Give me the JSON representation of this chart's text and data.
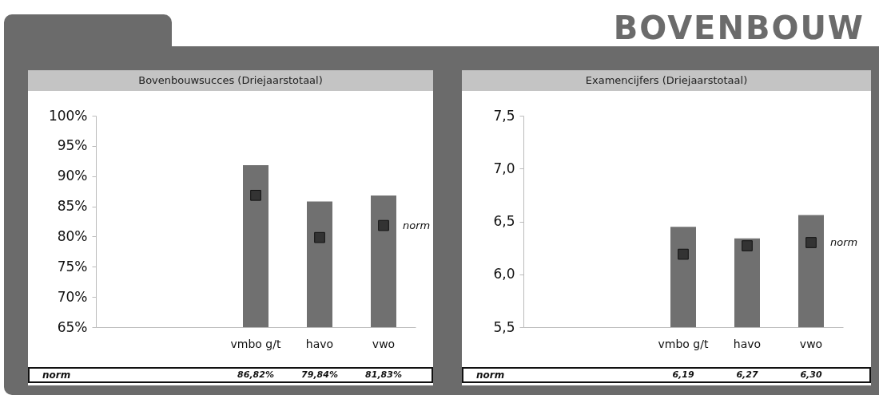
{
  "chart_data": [
    {
      "type": "bar",
      "title": "Bovenbouwsucces (Driejaarstotaal)",
      "annotations": [
        "BOVENBOUW"
      ],
      "categories": [
        null,
        null,
        "vmbo g/t",
        "havo",
        "vwo"
      ],
      "series": [
        {
          "type": "bar",
          "color": "#707070",
          "values": [
            null,
            null,
            91.8,
            85.8,
            86.8
          ]
        },
        {
          "type": "scatter",
          "name": "norm",
          "color": "#333333",
          "marker": "square",
          "values": [
            null,
            null,
            86.82,
            79.84,
            81.83
          ],
          "value_labels": [
            null,
            null,
            "86,82%",
            "79,84%",
            "81,83%"
          ]
        }
      ],
      "ylim": [
        65,
        100
      ],
      "yticks": [
        {
          "value": 65,
          "label": "65%"
        },
        {
          "value": 70,
          "label": "70%"
        },
        {
          "value": 75,
          "label": "75%"
        },
        {
          "value": 80,
          "label": "80%"
        },
        {
          "value": 85,
          "label": "85%"
        },
        {
          "value": 90,
          "label": "90%"
        },
        {
          "value": 95,
          "label": "95%"
        },
        {
          "value": 100,
          "label": "100%"
        }
      ]
    },
    {
      "type": "bar",
      "title": "Examencijfers (Driejaarstotaal)",
      "categories": [
        null,
        null,
        "vmbo g/t",
        "havo",
        "vwo"
      ],
      "series": [
        {
          "type": "bar",
          "color": "#707070",
          "values": [
            null,
            null,
            6.45,
            6.34,
            6.56
          ]
        },
        {
          "type": "scatter",
          "name": "norm",
          "color": "#333333",
          "marker": "square",
          "values": [
            null,
            null,
            6.19,
            6.27,
            6.3
          ],
          "value_labels": [
            null,
            null,
            "6,19",
            "6,27",
            "6,30"
          ]
        }
      ],
      "ylim": [
        5.5,
        7.5
      ],
      "yticks": [
        {
          "value": 5.5,
          "label": "5,5"
        },
        {
          "value": 6,
          "label": "6,0"
        },
        {
          "value": 6.5,
          "label": "6,5"
        },
        {
          "value": 7,
          "label": "7,0"
        },
        {
          "value": 7.5,
          "label": "7,5"
        }
      ]
    }
  ]
}
